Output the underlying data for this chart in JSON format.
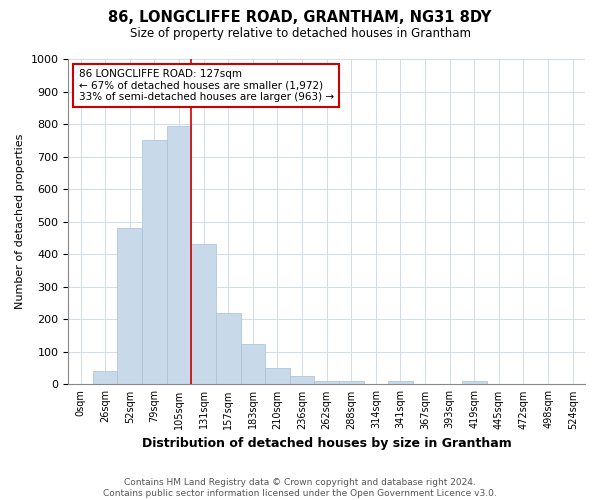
{
  "title": "86, LONGCLIFFE ROAD, GRANTHAM, NG31 8DY",
  "subtitle": "Size of property relative to detached houses in Grantham",
  "xlabel": "Distribution of detached houses by size in Grantham",
  "ylabel": "Number of detached properties",
  "bin_labels": [
    "0sqm",
    "26sqm",
    "52sqm",
    "79sqm",
    "105sqm",
    "131sqm",
    "157sqm",
    "183sqm",
    "210sqm",
    "236sqm",
    "262sqm",
    "288sqm",
    "314sqm",
    "341sqm",
    "367sqm",
    "393sqm",
    "419sqm",
    "445sqm",
    "472sqm",
    "498sqm",
    "524sqm"
  ],
  "bar_heights": [
    0,
    40,
    480,
    750,
    795,
    430,
    220,
    125,
    50,
    27,
    12,
    12,
    0,
    10,
    0,
    0,
    10,
    0,
    0,
    0,
    0
  ],
  "bar_color": "#c8daea",
  "bar_edgecolor": "#a8c0d6",
  "vline_x": 5,
  "vline_color": "#cc0000",
  "annotation_text": "86 LONGCLIFFE ROAD: 127sqm\n← 67% of detached houses are smaller (1,972)\n33% of semi-detached houses are larger (963) →",
  "annotation_box_color": "#ffffff",
  "annotation_box_edgecolor": "#cc0000",
  "ylim": [
    0,
    1000
  ],
  "yticks": [
    0,
    100,
    200,
    300,
    400,
    500,
    600,
    700,
    800,
    900,
    1000
  ],
  "footer": "Contains HM Land Registry data © Crown copyright and database right 2024.\nContains public sector information licensed under the Open Government Licence v3.0.",
  "bg_color": "#ffffff",
  "plot_bg_color": "#ffffff",
  "grid_color": "#d0dce8"
}
